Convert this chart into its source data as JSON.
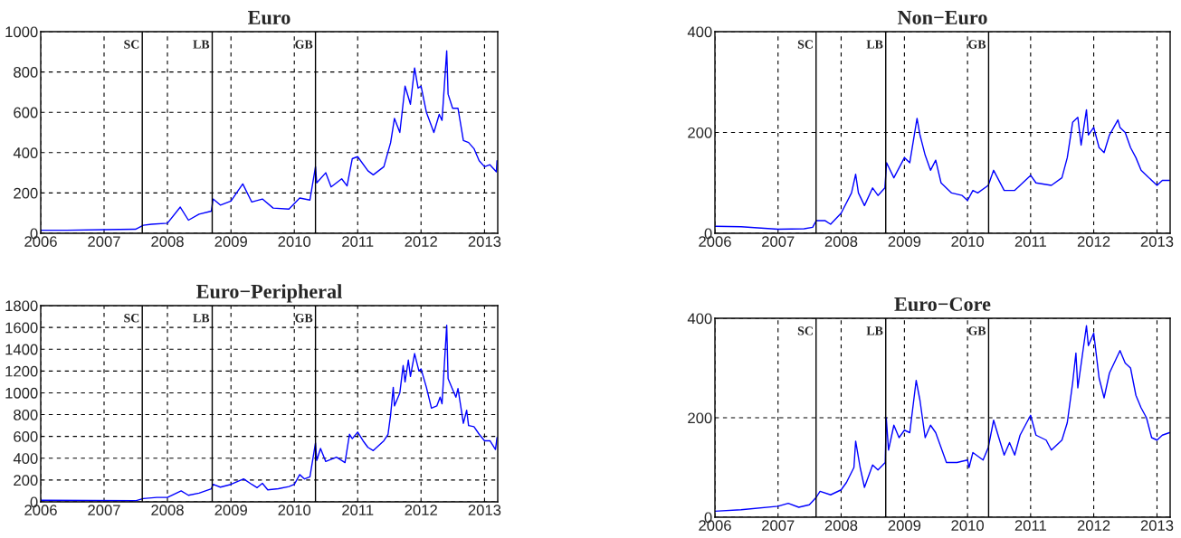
{
  "chart_data": [
    {
      "type": "line",
      "title": "Euro",
      "xlim": [
        "2006-01-01",
        "2013-03-18"
      ],
      "xticks": [
        "2006",
        "2007",
        "2008",
        "2009",
        "2010",
        "2011",
        "2012",
        "2013"
      ],
      "ylim": [
        0,
        1000
      ],
      "yticks": [
        0,
        200,
        400,
        600,
        800,
        1000
      ],
      "grid": true,
      "legend": false,
      "line_style": "solid",
      "marker": "none",
      "ref_lines": [
        {
          "axis": "x",
          "value": "2007-08-09",
          "label": "SC",
          "color": "#000000",
          "line_style": "solid"
        },
        {
          "axis": "x",
          "value": "2008-09-15",
          "label": "LB",
          "color": "#000000",
          "line_style": "solid"
        },
        {
          "axis": "x",
          "value": "2010-05-03",
          "label": "GB",
          "color": "#000000",
          "line_style": "solid"
        }
      ],
      "series": [
        {
          "color": "#0000ff",
          "x": [
            "2006-01-01",
            "2006-06",
            "2007-01",
            "2007-07",
            "2007-08-15",
            "2007-10",
            "2008-01",
            "2008-03-15",
            "2008-05",
            "2008-07",
            "2008-09-10",
            "2008-09-20",
            "2008-11",
            "2009-01",
            "2009-03-10",
            "2009-05",
            "2009-07",
            "2009-09",
            "2009-12",
            "2010-02",
            "2010-04",
            "2010-05-03",
            "2010-05-10",
            "2010-07",
            "2010-08",
            "2010-10",
            "2010-11",
            "2010-12",
            "2011-01",
            "2011-03",
            "2011-04",
            "2011-06",
            "2011-07-10",
            "2011-08",
            "2011-09",
            "2011-10",
            "2011-11",
            "2011-11-25",
            "2011-12-15",
            "2012-01",
            "2012-02",
            "2012-03-15",
            "2012-04-15",
            "2012-05",
            "2012-05-28",
            "2012-06-05",
            "2012-07",
            "2012-08",
            "2012-09",
            "2012-10",
            "2012-11",
            "2012-12",
            "2013-01",
            "2013-02",
            "2013-03-10",
            "2013-03-14"
          ],
          "values": [
            15,
            15,
            18,
            20,
            40,
            45,
            50,
            130,
            65,
            95,
            110,
            170,
            140,
            160,
            245,
            155,
            170,
            125,
            120,
            175,
            165,
            330,
            250,
            300,
            230,
            270,
            235,
            370,
            380,
            310,
            290,
            330,
            450,
            570,
            500,
            730,
            640,
            820,
            720,
            730,
            600,
            500,
            590,
            560,
            905,
            690,
            620,
            620,
            460,
            450,
            420,
            360,
            330,
            340,
            305,
            360
          ]
        }
      ]
    },
    {
      "type": "line",
      "title": "Non−Euro",
      "xlim": [
        "2006-01-01",
        "2013-03-18"
      ],
      "xticks": [
        "2006",
        "2007",
        "2008",
        "2009",
        "2010",
        "2011",
        "2012",
        "2013"
      ],
      "ylim": [
        0,
        400
      ],
      "yticks": [
        0,
        200,
        400
      ],
      "grid": true,
      "legend": false,
      "line_style": "solid",
      "marker": "none",
      "ref_lines": [
        {
          "axis": "x",
          "value": "2007-08-09",
          "label": "SC",
          "color": "#000000",
          "line_style": "solid"
        },
        {
          "axis": "x",
          "value": "2008-09-15",
          "label": "LB",
          "color": "#000000",
          "line_style": "solid"
        },
        {
          "axis": "x",
          "value": "2010-05-03",
          "label": "GB",
          "color": "#000000",
          "line_style": "solid"
        }
      ],
      "series": [
        {
          "color": "#0000ff",
          "x": [
            "2006-01-01",
            "2006-06",
            "2007-01",
            "2007-06",
            "2007-07-20",
            "2007-08-10",
            "2007-10",
            "2007-11",
            "2008-01",
            "2008-03",
            "2008-03-25",
            "2008-04-10",
            "2008-05-15",
            "2008-07",
            "2008-08",
            "2008-09-10",
            "2008-09-20",
            "2008-11",
            "2009-01",
            "2009-02",
            "2009-03-15",
            "2009-04",
            "2009-05",
            "2009-06",
            "2009-07",
            "2009-08",
            "2009-10",
            "2009-12",
            "2010-01",
            "2010-02",
            "2010-03",
            "2010-05",
            "2010-06",
            "2010-08",
            "2010-10",
            "2010-11",
            "2011-01",
            "2011-02",
            "2011-05",
            "2011-07",
            "2011-08",
            "2011-09",
            "2011-10",
            "2011-10-20",
            "2011-11-20",
            "2011-12",
            "2012-01",
            "2012-02",
            "2012-03",
            "2012-04",
            "2012-05-20",
            "2012-06",
            "2012-07",
            "2012-08",
            "2012-09",
            "2012-10",
            "2012-11",
            "2013-01",
            "2013-02",
            "2013-03-14"
          ],
          "values": [
            14,
            13,
            8,
            9,
            12,
            25,
            25,
            18,
            40,
            80,
            117,
            80,
            55,
            90,
            75,
            90,
            140,
            110,
            150,
            140,
            228,
            195,
            155,
            125,
            145,
            100,
            80,
            75,
            65,
            85,
            80,
            95,
            125,
            85,
            85,
            95,
            115,
            100,
            95,
            110,
            150,
            220,
            230,
            175,
            245,
            195,
            210,
            170,
            160,
            195,
            225,
            210,
            200,
            170,
            150,
            125,
            115,
            95,
            105,
            105
          ]
        }
      ]
    },
    {
      "type": "line",
      "title": "Euro−Peripheral",
      "xlim": [
        "2006-01-01",
        "2013-03-18"
      ],
      "xticks": [
        "2006",
        "2007",
        "2008",
        "2009",
        "2010",
        "2011",
        "2012",
        "2013"
      ],
      "ylim": [
        0,
        1800
      ],
      "yticks": [
        0,
        200,
        400,
        600,
        800,
        1000,
        1200,
        1400,
        1600,
        1800
      ],
      "grid": true,
      "legend": false,
      "line_style": "solid",
      "marker": "none",
      "ref_lines": [
        {
          "axis": "x",
          "value": "2007-08-09",
          "label": "SC",
          "color": "#000000",
          "line_style": "solid"
        },
        {
          "axis": "x",
          "value": "2008-09-15",
          "label": "LB",
          "color": "#000000",
          "line_style": "solid"
        },
        {
          "axis": "x",
          "value": "2010-05-03",
          "label": "GB",
          "color": "#000000",
          "line_style": "solid"
        }
      ],
      "series": [
        {
          "color": "#0000ff",
          "x": [
            "2006-01-01",
            "2007-07",
            "2007-08-15",
            "2007-11",
            "2008-01",
            "2008-03-20",
            "2008-05",
            "2008-07",
            "2008-09-10",
            "2008-09-20",
            "2008-11",
            "2009-01",
            "2009-03-15",
            "2009-05",
            "2009-06",
            "2009-07",
            "2009-08",
            "2009-10",
            "2009-12",
            "2010-01",
            "2010-02",
            "2010-03",
            "2010-04",
            "2010-05-03",
            "2010-05-10",
            "2010-06",
            "2010-07",
            "2010-09",
            "2010-10-20",
            "2010-11-15",
            "2010-12",
            "2011-01",
            "2011-02",
            "2011-03",
            "2011-04",
            "2011-06",
            "2011-06-25",
            "2011-07-10",
            "2011-07-25",
            "2011-08",
            "2011-09",
            "2011-09-20",
            "2011-10",
            "2011-10-20",
            "2011-11",
            "2011-11-25",
            "2011-12-20",
            "2012-01",
            "2012-02",
            "2012-03",
            "2012-04",
            "2012-04-20",
            "2012-05",
            "2012-05-28",
            "2012-06-05",
            "2012-07",
            "2012-07-20",
            "2012-08",
            "2012-09",
            "2012-09-20",
            "2012-10",
            "2012-11",
            "2012-12",
            "2013-01",
            "2013-02",
            "2013-03-05",
            "2013-03-14"
          ],
          "values": [
            15,
            10,
            30,
            40,
            40,
            100,
            60,
            80,
            120,
            160,
            135,
            160,
            210,
            160,
            130,
            170,
            110,
            120,
            140,
            160,
            250,
            210,
            230,
            540,
            380,
            490,
            370,
            410,
            360,
            620,
            580,
            640,
            560,
            500,
            470,
            560,
            620,
            800,
            1050,
            880,
            1000,
            1250,
            1100,
            1300,
            1150,
            1360,
            1200,
            1220,
            1050,
            860,
            880,
            960,
            900,
            1620,
            1130,
            1030,
            960,
            1040,
            720,
            840,
            700,
            690,
            620,
            560,
            560,
            480,
            590
          ]
        }
      ]
    },
    {
      "type": "line",
      "title": "Euro−Core",
      "xlim": [
        "2006-01-01",
        "2013-03-18"
      ],
      "xticks": [
        "2006",
        "2007",
        "2008",
        "2009",
        "2010",
        "2011",
        "2012",
        "2013"
      ],
      "ylim": [
        0,
        400
      ],
      "yticks": [
        0,
        200,
        400
      ],
      "grid": true,
      "legend": false,
      "line_style": "solid",
      "marker": "none",
      "ref_lines": [
        {
          "axis": "x",
          "value": "2007-08-09",
          "label": "SC",
          "color": "#000000",
          "line_style": "solid"
        },
        {
          "axis": "x",
          "value": "2008-09-15",
          "label": "LB",
          "color": "#000000",
          "line_style": "solid"
        },
        {
          "axis": "x",
          "value": "2010-05-03",
          "label": "GB",
          "color": "#000000",
          "line_style": "solid"
        }
      ],
      "series": [
        {
          "color": "#0000ff",
          "x": [
            "2006-01-01",
            "2006-06",
            "2007-01",
            "2007-03",
            "2007-05",
            "2007-07",
            "2007-08-10",
            "2007-09",
            "2007-11",
            "2008-01",
            "2008-02",
            "2008-03-15",
            "2008-03-25",
            "2008-04-20",
            "2008-05-15",
            "2008-07",
            "2008-08",
            "2008-09-12",
            "2008-09-18",
            "2008-10",
            "2008-11",
            "2008-12",
            "2009-01",
            "2009-02",
            "2009-03-10",
            "2009-04",
            "2009-05",
            "2009-06",
            "2009-07",
            "2009-08",
            "2009-09",
            "2009-11",
            "2010-01",
            "2010-01-10",
            "2010-02",
            "2010-04",
            "2010-05",
            "2010-06",
            "2010-07",
            "2010-08",
            "2010-09",
            "2010-10",
            "2010-11",
            "2011-01",
            "2011-02",
            "2011-04",
            "2011-05",
            "2011-07",
            "2011-08",
            "2011-09",
            "2011-09-20",
            "2011-10",
            "2011-11-20",
            "2011-12",
            "2012-01",
            "2012-02",
            "2012-03",
            "2012-04",
            "2012-06",
            "2012-07",
            "2012-08",
            "2012-09",
            "2012-10",
            "2012-11",
            "2012-12",
            "2013-01",
            "2013-02",
            "2013-03-14"
          ],
          "values": [
            12,
            15,
            22,
            28,
            20,
            25,
            40,
            52,
            45,
            55,
            70,
            100,
            153,
            100,
            60,
            105,
            95,
            110,
            200,
            135,
            185,
            160,
            175,
            170,
            275,
            235,
            160,
            185,
            170,
            140,
            110,
            110,
            115,
            100,
            130,
            115,
            140,
            195,
            160,
            125,
            150,
            125,
            165,
            205,
            165,
            155,
            135,
            155,
            190,
            270,
            330,
            260,
            385,
            345,
            370,
            280,
            240,
            290,
            335,
            310,
            300,
            245,
            220,
            200,
            160,
            155,
            165,
            170
          ]
        }
      ]
    }
  ]
}
